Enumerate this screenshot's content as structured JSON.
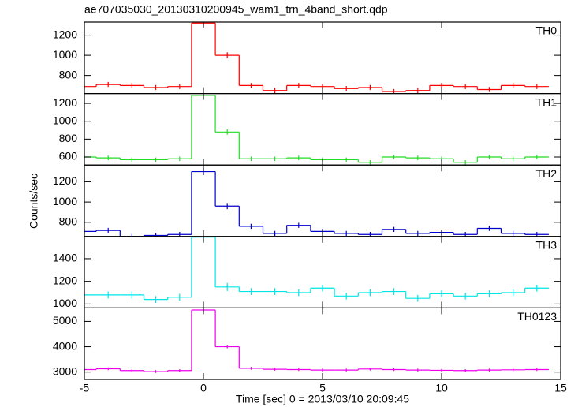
{
  "chart_data": {
    "type": "step",
    "title": "ae707035030_20130310200945_wam1_trn_4band_short.qdp",
    "xlabel": "Time [sec] 0 = 2013/03/10 20:09:45",
    "ylabel": "Counts/sec",
    "xlim": [
      -5,
      15
    ],
    "xticks": [
      -5,
      0,
      5,
      10,
      15
    ],
    "x": [
      -5,
      -4,
      -3,
      -2,
      -1,
      0,
      1,
      2,
      3,
      4,
      5,
      6,
      7,
      8,
      9,
      10,
      11,
      12,
      13,
      14
    ],
    "panels": [
      {
        "label": "TH0",
        "color": "#ff0000",
        "ylim": [
          620,
          1330
        ],
        "yticks": [
          800,
          1000,
          1200
        ],
        "values": [
          690,
          710,
          700,
          680,
          690,
          1320,
          1000,
          700,
          650,
          700,
          690,
          670,
          680,
          640,
          650,
          700,
          690,
          660,
          700,
          690
        ],
        "errors": [
          25,
          25,
          25,
          25,
          25,
          35,
          30,
          25,
          25,
          25,
          25,
          25,
          25,
          25,
          25,
          25,
          25,
          25,
          25,
          25
        ]
      },
      {
        "label": "TH1",
        "color": "#22dd22",
        "ylim": [
          510,
          1310
        ],
        "yticks": [
          600,
          800,
          1000,
          1200
        ],
        "values": [
          600,
          590,
          570,
          570,
          580,
          1290,
          880,
          580,
          580,
          590,
          570,
          570,
          540,
          600,
          590,
          580,
          540,
          600,
          580,
          600
        ],
        "errors": [
          25,
          25,
          25,
          25,
          25,
          35,
          30,
          25,
          25,
          25,
          25,
          25,
          25,
          25,
          25,
          25,
          25,
          25,
          25,
          25
        ]
      },
      {
        "label": "TH2",
        "color": "#0000cc",
        "ylim": [
          660,
          1365
        ],
        "yticks": [
          800,
          1000,
          1200
        ],
        "values": [
          710,
          720,
          660,
          670,
          680,
          1300,
          960,
          760,
          690,
          770,
          710,
          690,
          680,
          730,
          690,
          700,
          680,
          740,
          690,
          680
        ],
        "errors": [
          25,
          25,
          25,
          25,
          25,
          35,
          30,
          25,
          25,
          25,
          25,
          25,
          25,
          25,
          25,
          25,
          25,
          25,
          25,
          25
        ]
      },
      {
        "label": "TH3",
        "color": "#00e5e5",
        "ylim": [
          965,
          1596
        ],
        "yticks": [
          1000,
          1200,
          1400
        ],
        "values": [
          1080,
          1080,
          1080,
          1040,
          1060,
          1590,
          1150,
          1110,
          1110,
          1100,
          1140,
          1070,
          1100,
          1110,
          1050,
          1090,
          1070,
          1090,
          1100,
          1140
        ],
        "errors": [
          30,
          30,
          30,
          30,
          30,
          40,
          35,
          30,
          30,
          30,
          30,
          30,
          30,
          30,
          30,
          30,
          30,
          30,
          30,
          30
        ]
      },
      {
        "label": "TH0123",
        "color": "#ee00ee",
        "ylim": [
          2710,
          5530
        ],
        "yticks": [
          3000,
          4000,
          5000
        ],
        "values": [
          3100,
          3130,
          3060,
          3020,
          3060,
          5450,
          4000,
          3150,
          3110,
          3100,
          3080,
          3080,
          3120,
          3100,
          3080,
          3070,
          3060,
          3080,
          3090,
          3100
        ],
        "errors": [
          55,
          55,
          55,
          55,
          55,
          75,
          65,
          55,
          55,
          55,
          55,
          55,
          55,
          55,
          55,
          55,
          55,
          55,
          55,
          55
        ]
      }
    ]
  }
}
